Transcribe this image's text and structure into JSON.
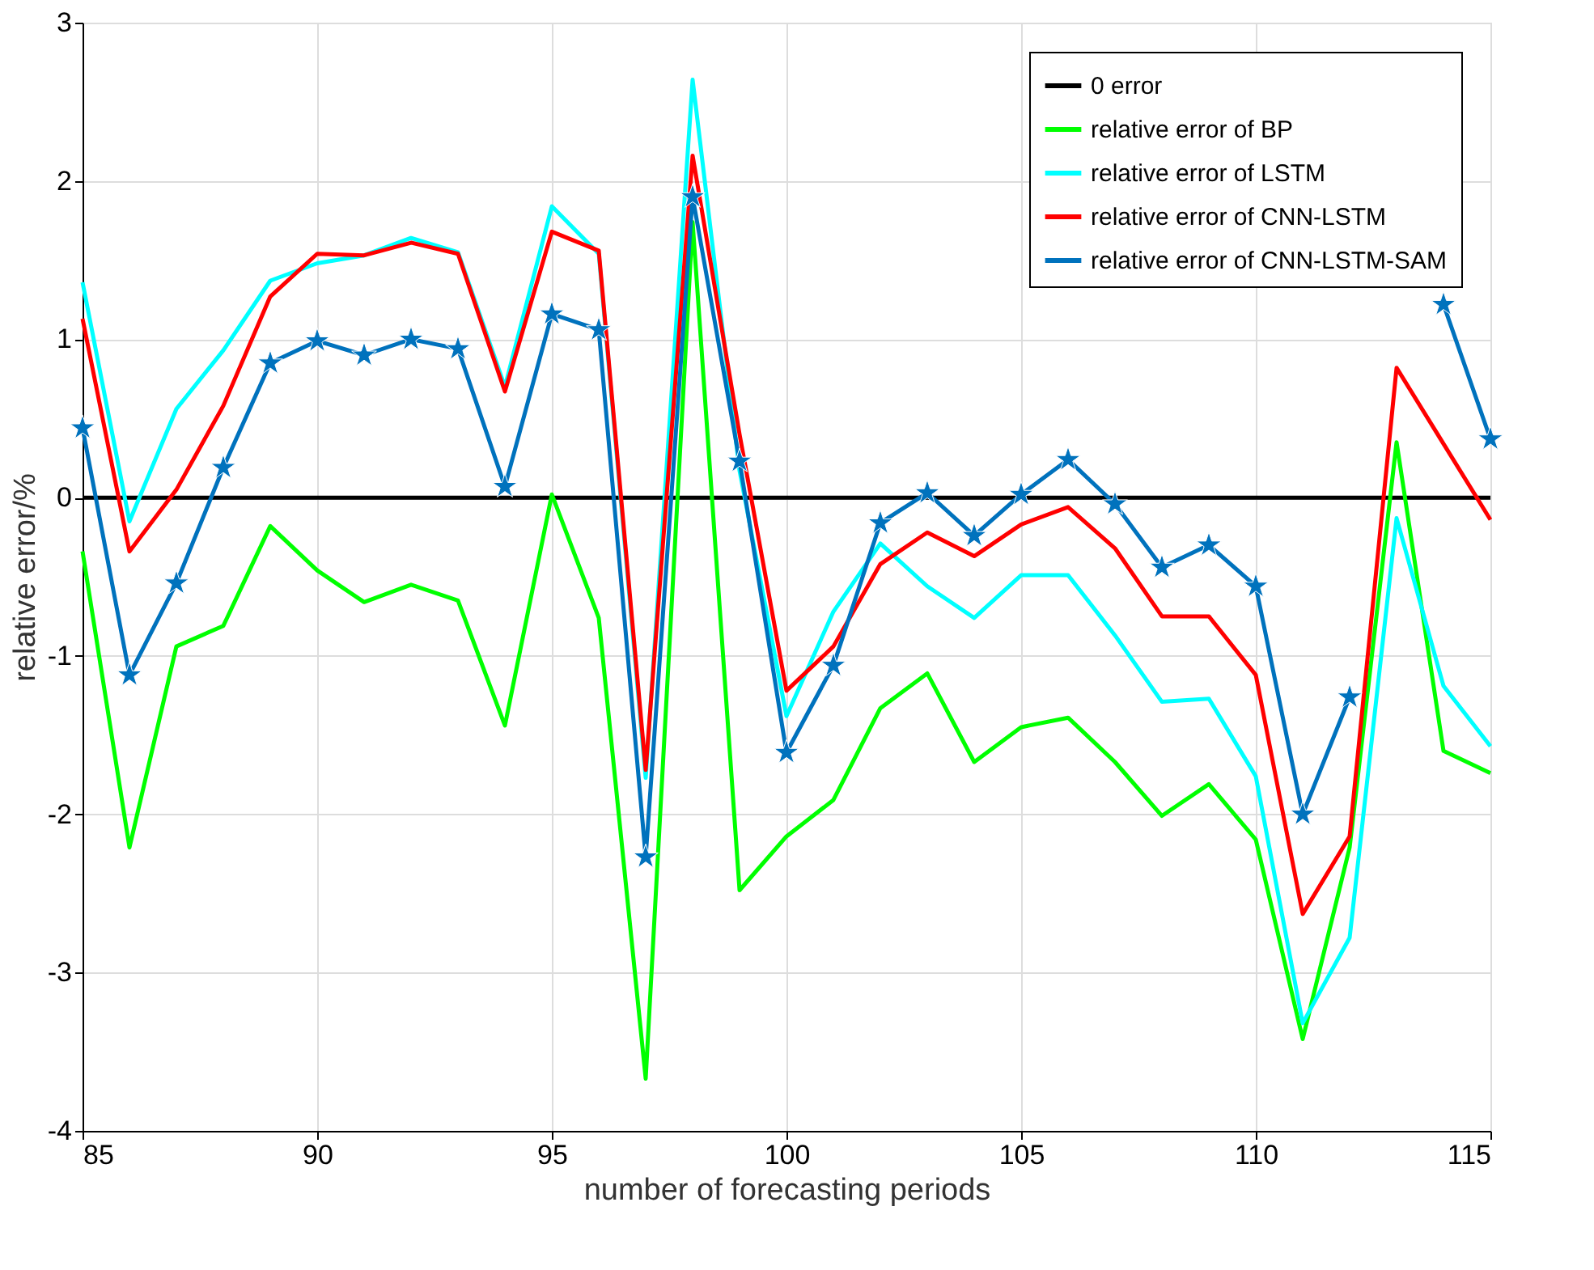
{
  "chart_data": {
    "type": "line",
    "xlabel": "number of forecasting periods",
    "ylabel": "relative error/%",
    "x": [
      85,
      86,
      87,
      88,
      89,
      90,
      91,
      92,
      93,
      94,
      95,
      96,
      97,
      98,
      99,
      100,
      101,
      102,
      103,
      104,
      105,
      106,
      107,
      108,
      109,
      110,
      111,
      112,
      113,
      114,
      115
    ],
    "xlim": [
      85,
      115
    ],
    "xticks": [
      85,
      90,
      95,
      100,
      105,
      110,
      115
    ],
    "ylim": [
      -4,
      3
    ],
    "yticks": [
      -4,
      -3,
      -2,
      -1,
      0,
      1,
      2,
      3
    ],
    "grid": true,
    "legend": "top right",
    "line_style": "solid",
    "series": [
      {
        "name": "0 error",
        "color": "#000000",
        "marker": "none",
        "values": [
          0,
          0,
          0,
          0,
          0,
          0,
          0,
          0,
          0,
          0,
          0,
          0,
          0,
          0,
          0,
          0,
          0,
          0,
          0,
          0,
          0,
          0,
          0,
          0,
          0,
          0,
          0,
          0,
          0,
          0,
          0
        ]
      },
      {
        "name": "relative error of BP",
        "color": "#00ff00",
        "marker": "none",
        "values": [
          -0.34,
          -2.21,
          -0.94,
          -0.81,
          -0.18,
          -0.46,
          -0.66,
          -0.55,
          -0.65,
          -1.44,
          0.02,
          -0.76,
          -3.67,
          1.74,
          -2.48,
          -2.14,
          -1.91,
          -1.33,
          -1.11,
          -1.67,
          -1.45,
          -1.39,
          -1.67,
          -2.01,
          -1.81,
          -2.16,
          -3.42,
          -2.21,
          0.35,
          -1.6,
          -1.74
        ]
      },
      {
        "name": "relative error of LSTM",
        "color": "#00ffff",
        "marker": "none",
        "values": [
          1.36,
          -0.15,
          0.56,
          0.93,
          1.37,
          1.48,
          1.53,
          1.64,
          1.55,
          0.7,
          1.84,
          1.54,
          -1.77,
          2.64,
          0.17,
          -1.38,
          -0.72,
          -0.29,
          -0.56,
          -0.76,
          -0.49,
          -0.49,
          -0.87,
          -1.29,
          -1.27,
          -1.76,
          -3.32,
          -2.78,
          -0.13,
          -1.19,
          -1.57
        ]
      },
      {
        "name": "relative error of CNN-LSTM",
        "color": "#ff0000",
        "marker": "none",
        "values": [
          1.13,
          -0.34,
          0.05,
          0.58,
          1.27,
          1.54,
          1.53,
          1.61,
          1.54,
          0.67,
          1.68,
          1.56,
          -1.72,
          2.16,
          0.4,
          -1.22,
          -0.94,
          -0.42,
          -0.22,
          -0.37,
          -0.17,
          -0.06,
          -0.32,
          -0.75,
          -0.75,
          -1.12,
          -2.63,
          -2.14,
          0.82,
          0.34,
          -0.14
        ]
      },
      {
        "name": "relative error of CNN-LSTM-SAM",
        "color": "#0072bd",
        "marker": "star",
        "values": [
          0.44,
          -1.12,
          -0.54,
          0.19,
          0.85,
          0.99,
          0.9,
          1.0,
          0.94,
          0.07,
          1.16,
          1.06,
          -2.27,
          1.9,
          0.23,
          -1.61,
          -1.06,
          -0.16,
          0.03,
          -0.24,
          0.02,
          0.24,
          -0.04,
          -0.44,
          -0.3,
          -0.56,
          -2.0,
          -1.26,
          null,
          1.22,
          0.37
        ]
      }
    ]
  }
}
